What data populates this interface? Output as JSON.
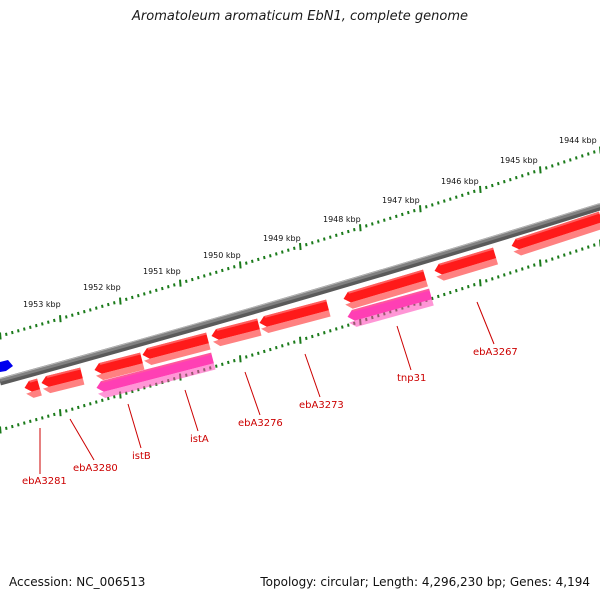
{
  "title": "Aromatoleum aromaticum EbN1, complete genome",
  "footer": {
    "accession": "Accession: NC_006513",
    "summary": "Topology: circular; Length: 4,296,230 bp; Genes: 4,194"
  },
  "colors": {
    "backbone": "#808080",
    "gene": "#ff1a1a",
    "transposase": "#ff3fb4",
    "other_feature": "#0000ee",
    "tick": "#1a7a1a",
    "label": "#cc0000"
  },
  "coordinate_ticks": [
    "1953 kbp",
    "1952 kbp",
    "1951 kbp",
    "1950 kbp",
    "1949 kbp",
    "1948 kbp",
    "1947 kbp",
    "1946 kbp",
    "1945 kbp",
    "1944 kbp"
  ],
  "genes": [
    {
      "name": "ebA3281",
      "strand": "reverse",
      "kind": "gene"
    },
    {
      "name": "ebA3280",
      "strand": "reverse",
      "kind": "gene"
    },
    {
      "name": "istB",
      "strand": "reverse",
      "kind": "transposase"
    },
    {
      "name": "istA",
      "strand": "reverse",
      "kind": "transposase"
    },
    {
      "name": "ebA3276",
      "strand": "reverse",
      "kind": "gene"
    },
    {
      "name": "ebA3273",
      "strand": "reverse",
      "kind": "gene"
    },
    {
      "name": "tnp31",
      "strand": "reverse",
      "kind": "transposase"
    },
    {
      "name": "ebA3267",
      "strand": "reverse",
      "kind": "gene"
    }
  ]
}
